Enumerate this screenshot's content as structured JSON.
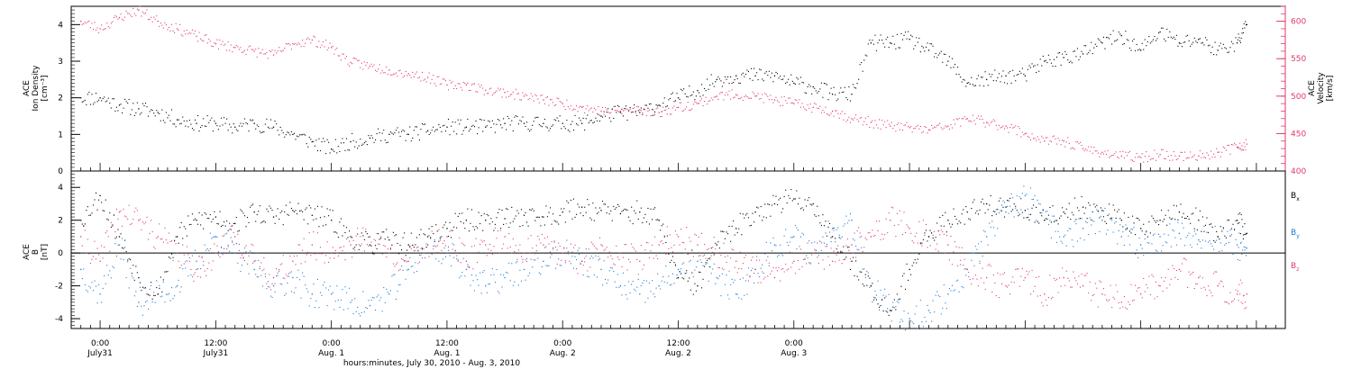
{
  "chart_data": [
    {
      "type": "scatter",
      "panel": "top",
      "ylabel_left": [
        "ACE",
        "Ion Density",
        "[cm⁻³]"
      ],
      "ylabel_right": [
        "ACE",
        "Velocity",
        "[km/s]"
      ],
      "ylim_left": [
        0,
        4.5
      ],
      "yticks_left": [
        0,
        1,
        2,
        3,
        4
      ],
      "ylim_right": [
        400,
        620
      ],
      "yticks_right": [
        400,
        450,
        500,
        550,
        600
      ],
      "series": [
        {
          "name": "Ion Density",
          "axis": "left",
          "color": "#000000",
          "x": [
            -2,
            0,
            2,
            4,
            6,
            8,
            10,
            12,
            14,
            16,
            18,
            20,
            22,
            24,
            26,
            28,
            30,
            32,
            34,
            36,
            38,
            40,
            42,
            44,
            46,
            48,
            50,
            52,
            54,
            56,
            58,
            60,
            62,
            64,
            66,
            68,
            70,
            72,
            74,
            76,
            78,
            80,
            82,
            84,
            86,
            88,
            90,
            92,
            94,
            96,
            98,
            100,
            102,
            104,
            106,
            108,
            110,
            112,
            114,
            116,
            118,
            119
          ],
          "y": [
            2.0,
            2.0,
            1.8,
            1.7,
            1.6,
            1.4,
            1.3,
            1.3,
            1.2,
            1.3,
            1.2,
            1.0,
            0.8,
            0.6,
            0.8,
            0.9,
            1.0,
            1.0,
            1.1,
            1.2,
            1.2,
            1.2,
            1.3,
            1.3,
            1.3,
            1.3,
            1.3,
            1.5,
            1.6,
            1.6,
            1.8,
            2.0,
            2.2,
            2.5,
            2.6,
            2.6,
            2.6,
            2.4,
            2.3,
            2.1,
            2.1,
            3.5,
            3.5,
            3.6,
            3.3,
            3.0,
            2.4,
            2.5,
            2.6,
            2.6,
            3.0,
            3.1,
            3.2,
            3.5,
            3.7,
            3.3,
            3.8,
            3.5,
            3.6,
            3.3,
            3.5,
            4.0
          ]
        },
        {
          "name": "Velocity",
          "axis": "right",
          "color": "#e03a6a",
          "x": [
            -2,
            0,
            2,
            4,
            6,
            8,
            10,
            12,
            14,
            16,
            18,
            20,
            22,
            24,
            26,
            28,
            30,
            32,
            34,
            36,
            38,
            40,
            42,
            44,
            46,
            48,
            50,
            52,
            54,
            56,
            58,
            60,
            62,
            64,
            66,
            68,
            70,
            72,
            74,
            76,
            78,
            80,
            82,
            84,
            86,
            88,
            90,
            92,
            94,
            96,
            98,
            100,
            102,
            104,
            106,
            108,
            110,
            112,
            114,
            116,
            118,
            119
          ],
          "y": [
            600,
            590,
            605,
            615,
            600,
            590,
            580,
            570,
            565,
            560,
            555,
            570,
            575,
            565,
            545,
            540,
            535,
            530,
            525,
            515,
            515,
            508,
            505,
            500,
            495,
            490,
            485,
            480,
            480,
            482,
            478,
            485,
            490,
            500,
            502,
            500,
            495,
            490,
            485,
            480,
            470,
            465,
            460,
            458,
            455,
            460,
            470,
            465,
            460,
            450,
            440,
            440,
            430,
            425,
            420,
            418,
            422,
            420,
            420,
            425,
            432,
            436
          ]
        }
      ]
    },
    {
      "type": "scatter",
      "panel": "bottom",
      "ylabel": [
        "ACE",
        "B",
        "[nT]"
      ],
      "ylim": [
        -4.6,
        5
      ],
      "yticks": [
        -4,
        -2,
        0,
        2,
        4
      ],
      "zero_line": true,
      "legend": "right",
      "series": [
        {
          "name": "Bx",
          "name_main": "B",
          "name_sub": "x",
          "color": "#000000",
          "x": [
            -2,
            0,
            2,
            4,
            6,
            8,
            10,
            12,
            14,
            16,
            18,
            20,
            22,
            24,
            26,
            28,
            30,
            32,
            34,
            36,
            38,
            40,
            42,
            44,
            46,
            48,
            50,
            52,
            54,
            56,
            58,
            60,
            62,
            64,
            66,
            68,
            70,
            72,
            74,
            76,
            78,
            80,
            82,
            84,
            86,
            88,
            90,
            92,
            94,
            96,
            98,
            100,
            102,
            104,
            106,
            108,
            110,
            112,
            114,
            116,
            118,
            119
          ],
          "y": [
            2.0,
            3.5,
            1.0,
            -1.5,
            -2.5,
            1.0,
            2.0,
            2.2,
            1.8,
            2.5,
            2.2,
            2.6,
            2.3,
            2.0,
            1.0,
            0.5,
            0.8,
            0.5,
            1.0,
            1.5,
            2.0,
            2.0,
            2.1,
            2.3,
            2.2,
            2.5,
            2.8,
            2.6,
            2.4,
            2.5,
            2.0,
            -1.5,
            -2.0,
            0.5,
            1.5,
            2.5,
            3.0,
            3.3,
            3.0,
            1.0,
            -0.5,
            -2.0,
            -3.5,
            -1.0,
            1.0,
            2.0,
            2.5,
            3.0,
            2.8,
            2.6,
            2.0,
            2.5,
            2.8,
            2.6,
            2.0,
            1.5,
            2.0,
            2.5,
            2.0,
            1.0,
            2.0,
            1.2
          ]
        },
        {
          "name": "By",
          "name_main": "B",
          "name_sub": "y",
          "color": "#1f7bd6",
          "x": [
            -2,
            0,
            2,
            4,
            6,
            8,
            10,
            12,
            14,
            16,
            18,
            20,
            22,
            24,
            26,
            28,
            30,
            32,
            34,
            36,
            38,
            40,
            42,
            44,
            46,
            48,
            50,
            52,
            54,
            56,
            58,
            60,
            62,
            64,
            66,
            68,
            70,
            72,
            74,
            76,
            78,
            80,
            82,
            84,
            86,
            88,
            90,
            92,
            94,
            96,
            98,
            100,
            102,
            104,
            106,
            108,
            110,
            112,
            114,
            116,
            118,
            119
          ],
          "y": [
            -1.0,
            -2.5,
            0.5,
            -3.0,
            -2.5,
            -2.0,
            -0.5,
            1.0,
            0.0,
            -1.0,
            -2.0,
            -1.5,
            -2.5,
            -2.5,
            -3.0,
            -3.2,
            -2.5,
            -1.0,
            0.5,
            0.0,
            -1.0,
            -2.0,
            -1.5,
            -1.0,
            -0.5,
            0.0,
            -0.5,
            -1.0,
            -2.0,
            -2.5,
            -2.0,
            -1.0,
            -0.5,
            -1.5,
            -2.5,
            -1.0,
            0.5,
            1.0,
            0.0,
            1.5,
            2.0,
            -2.0,
            -3.5,
            -4.0,
            -3.5,
            -2.5,
            -1.0,
            1.0,
            2.5,
            3.5,
            2.0,
            1.0,
            1.5,
            2.0,
            1.0,
            0.5,
            1.0,
            1.2,
            0.8,
            1.0,
            0.5,
            0.3
          ]
        },
        {
          "name": "Bz",
          "name_main": "B",
          "name_sub": "z",
          "color": "#e03a6a",
          "x": [
            -2,
            0,
            2,
            4,
            6,
            8,
            10,
            12,
            14,
            16,
            18,
            20,
            22,
            24,
            26,
            28,
            30,
            32,
            34,
            36,
            38,
            40,
            42,
            44,
            46,
            48,
            50,
            52,
            54,
            56,
            58,
            60,
            62,
            64,
            66,
            68,
            70,
            72,
            74,
            76,
            78,
            80,
            82,
            84,
            86,
            88,
            90,
            92,
            94,
            96,
            98,
            100,
            102,
            104,
            106,
            108,
            110,
            112,
            114,
            116,
            118,
            119
          ],
          "y": [
            1.0,
            -0.5,
            2.5,
            2.0,
            1.0,
            0.0,
            -1.0,
            0.0,
            1.0,
            -0.5,
            -1.5,
            -0.5,
            0.5,
            0.0,
            0.5,
            1.0,
            0.0,
            -0.5,
            0.5,
            1.0,
            -0.5,
            0.5,
            1.0,
            0.0,
            0.5,
            0.0,
            -0.5,
            0.5,
            0.0,
            -0.5,
            0.5,
            1.0,
            0.5,
            0.0,
            -0.5,
            -1.0,
            -1.5,
            -0.5,
            0.0,
            -0.5,
            0.5,
            1.0,
            2.0,
            1.5,
            1.0,
            0.5,
            -1.0,
            -1.5,
            -2.0,
            -1.5,
            -2.5,
            -1.5,
            -2.0,
            -2.5,
            -3.0,
            -2.5,
            -2.0,
            -1.0,
            -1.5,
            -2.0,
            -2.5,
            -2.5
          ]
        }
      ]
    }
  ],
  "x_axis": {
    "xlim": [
      -3,
      123
    ],
    "ticks": [
      {
        "hour": 0,
        "time": "0:00",
        "date": "July31"
      },
      {
        "hour": 12,
        "time": "12:00",
        "date": "July31"
      },
      {
        "hour": 24,
        "time": "0:00",
        "date": "Aug. 1"
      },
      {
        "hour": 36,
        "time": "12:00",
        "date": "Aug. 1"
      },
      {
        "hour": 48,
        "time": "0:00",
        "date": "Aug. 2"
      },
      {
        "hour": 60,
        "time": "12:00",
        "date": "Aug. 2"
      },
      {
        "hour": 72,
        "time": "0:00",
        "date": "Aug. 3"
      }
    ],
    "xlabel": "hours:minutes, July 30, 2010 - Aug.  3, 2010"
  },
  "colors": {
    "black": "#000000",
    "pink": "#e03a6a",
    "blue": "#1f7bd6"
  }
}
